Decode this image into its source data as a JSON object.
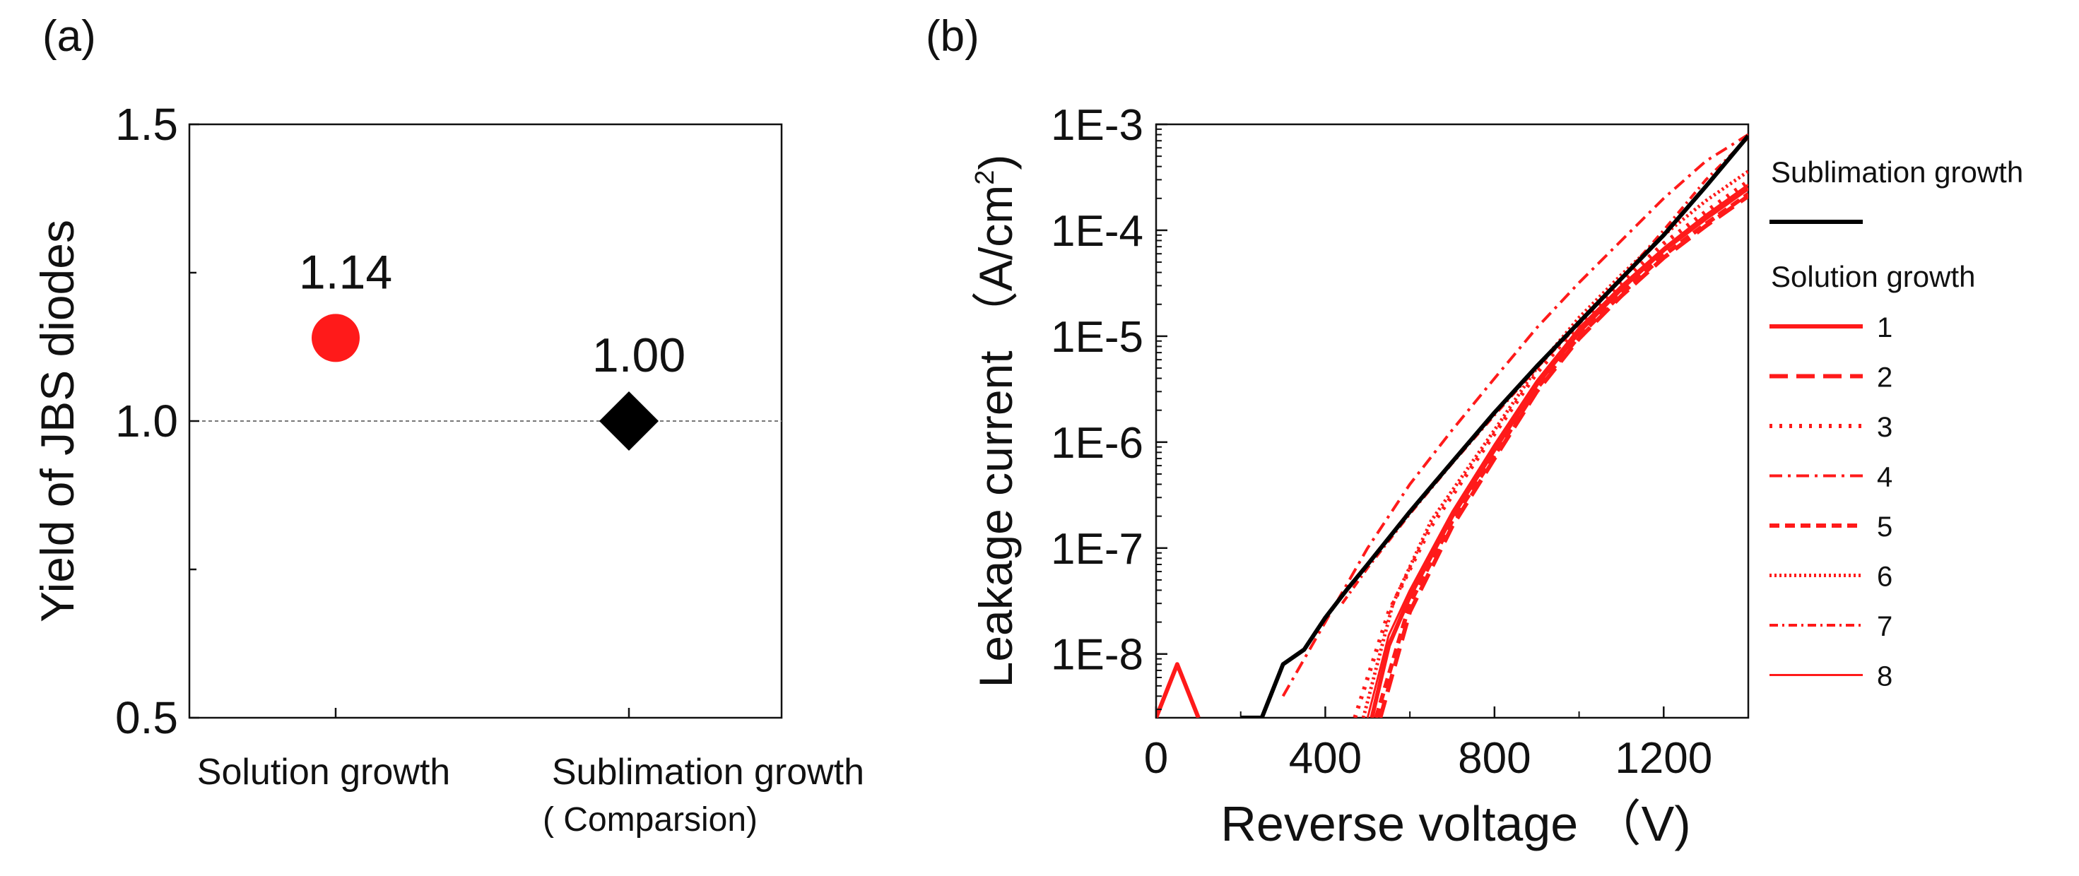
{
  "panels": {
    "a_label": "(a)",
    "b_label": "(b)"
  },
  "chart_data": [
    {
      "type": "scatter",
      "panel": "a",
      "ylabel": "Yield of JBS diodes",
      "xlabel": "",
      "ylim": [
        0.5,
        1.5
      ],
      "yticks": [
        "0.5",
        "1.0",
        "1.5"
      ],
      "y_minor_ticks": [
        0.75,
        1.25
      ],
      "reference_line": {
        "y": 1.0,
        "style": "dotted"
      },
      "categories": [
        {
          "label": "Solution growth",
          "sublabel": "",
          "color": "#ff1a1a"
        },
        {
          "label": "Sublimation growth",
          "sublabel": "( Comparsion)",
          "color": "#111111"
        }
      ],
      "points": [
        {
          "category": 0,
          "value": 1.14,
          "label": "1.14",
          "marker": "circle",
          "color": "#ff1a1a"
        },
        {
          "category": 1,
          "value": 1.0,
          "label": "1.00",
          "marker": "diamond",
          "color": "#000000"
        }
      ],
      "grid": false
    },
    {
      "type": "line",
      "panel": "b",
      "xlabel": "Reverse voltage （V)",
      "ylabel_main": "Leakage current （A/cm",
      "ylabel_sup": "2",
      "ylabel_tail": ")",
      "xlim": [
        0,
        1400
      ],
      "xticks": [
        "0",
        "400",
        "800",
        "1200"
      ],
      "y_scale": "log",
      "ylim": [
        2.5e-09,
        0.001
      ],
      "yticks": [
        "1E-8",
        "1E-7",
        "1E-6",
        "1E-5",
        "1E-4",
        "1E-3"
      ],
      "legend_position": "right",
      "legend_headers": [
        "Sublimation growth",
        "Solution growth"
      ],
      "grid": false,
      "series": [
        {
          "name": "Sublimation growth",
          "group": "sublimation",
          "color": "#000000",
          "dash": "",
          "width": 6,
          "points": [
            [
              200,
              2.5e-09
            ],
            [
              250,
              2.5e-09
            ],
            [
              300,
              8e-09
            ],
            [
              350,
              1.1e-08
            ],
            [
              400,
              2.2e-08
            ],
            [
              450,
              4e-08
            ],
            [
              500,
              7e-08
            ],
            [
              600,
              2.2e-07
            ],
            [
              700,
              6.5e-07
            ],
            [
              800,
              1.9e-06
            ],
            [
              900,
              5.2e-06
            ],
            [
              1000,
              1.35e-05
            ],
            [
              1100,
              3.5e-05
            ],
            [
              1200,
              9e-05
            ],
            [
              1300,
              0.00026
            ],
            [
              1400,
              0.00078
            ]
          ]
        },
        {
          "name": "1",
          "group": "solution",
          "color": "#ff1a1a",
          "dash": "",
          "width": 6,
          "points": [
            [
              0,
              2.5e-09
            ],
            [
              50,
              8e-09
            ],
            [
              100,
              2.5e-09
            ]
          ]
        },
        {
          "name": "1",
          "group": "solution",
          "color": "#ff1a1a",
          "dash": "",
          "width": 6,
          "points": [
            [
              510,
              2.5e-09
            ],
            [
              550,
              1.2e-08
            ],
            [
              600,
              3.5e-08
            ],
            [
              700,
              2e-07
            ],
            [
              800,
              8.5e-07
            ],
            [
              900,
              3.5e-06
            ],
            [
              1000,
              1.1e-05
            ],
            [
              1100,
              2.8e-05
            ],
            [
              1200,
              6.5e-05
            ],
            [
              1300,
              0.00013
            ],
            [
              1400,
              0.00025
            ]
          ]
        },
        {
          "name": "2",
          "group": "solution",
          "color": "#ff1a1a",
          "dash": "26 12",
          "width": 6,
          "points": [
            [
              530,
              2.5e-09
            ],
            [
              600,
              2.5e-08
            ],
            [
              700,
              1.6e-07
            ],
            [
              800,
              7e-07
            ],
            [
              900,
              3e-06
            ],
            [
              1000,
              9.5e-06
            ],
            [
              1100,
              2.4e-05
            ],
            [
              1200,
              5.5e-05
            ],
            [
              1300,
              0.00011
            ],
            [
              1400,
              0.00021
            ]
          ]
        },
        {
          "name": "3",
          "group": "solution",
          "color": "#ff1a1a",
          "dash": "4 10",
          "width": 6,
          "points": [
            [
              470,
              2.5e-09
            ],
            [
              550,
              2.5e-08
            ],
            [
              650,
              1.6e-07
            ],
            [
              800,
              1.2e-06
            ],
            [
              900,
              4.5e-06
            ],
            [
              1000,
              1.3e-05
            ],
            [
              1100,
              3.2e-05
            ],
            [
              1200,
              7.5e-05
            ],
            [
              1300,
              0.00015
            ],
            [
              1400,
              0.00029
            ]
          ]
        },
        {
          "name": "4",
          "group": "solution",
          "color": "#ff1a1a",
          "dash": "18 8 4 8",
          "width": 4,
          "points": [
            [
              300,
              4e-09
            ],
            [
              400,
              2e-08
            ],
            [
              500,
              1e-07
            ],
            [
              600,
              4e-07
            ],
            [
              700,
              1.3e-06
            ],
            [
              800,
              4e-06
            ],
            [
              900,
              1.2e-05
            ],
            [
              1000,
              3.2e-05
            ],
            [
              1100,
              8e-05
            ],
            [
              1200,
              0.0002
            ],
            [
              1300,
              0.00045
            ],
            [
              1400,
              0.0008
            ]
          ]
        },
        {
          "name": "5",
          "group": "solution",
          "color": "#ff1a1a",
          "dash": "14 8",
          "width": 6,
          "points": [
            [
              520,
              2.5e-09
            ],
            [
              600,
              3e-08
            ],
            [
              700,
              1.8e-07
            ],
            [
              800,
              7.5e-07
            ],
            [
              900,
              3.2e-06
            ],
            [
              1000,
              1e-05
            ],
            [
              1100,
              2.5e-05
            ],
            [
              1200,
              5.8e-05
            ],
            [
              1300,
              0.000115
            ],
            [
              1400,
              0.00022
            ]
          ]
        },
        {
          "name": "6",
          "group": "solution",
          "color": "#ff1a1a",
          "dash": "3 4",
          "width": 5,
          "points": [
            [
              490,
              2.5e-09
            ],
            [
              560,
              3e-08
            ],
            [
              650,
              1.8e-07
            ],
            [
              800,
              1.3e-06
            ],
            [
              900,
              5e-06
            ],
            [
              1000,
              1.5e-05
            ],
            [
              1100,
              3.8e-05
            ],
            [
              1200,
              9e-05
            ],
            [
              1300,
              0.00019
            ],
            [
              1400,
              0.00036
            ]
          ]
        },
        {
          "name": "7",
          "group": "solution",
          "color": "#ff1a1a",
          "dash": "12 6 3 6",
          "width": 4,
          "points": [
            [
              440,
              3e-08
            ],
            [
              500,
              6.5e-08
            ],
            [
              600,
              2.1e-07
            ],
            [
              700,
              6.3e-07
            ],
            [
              800,
              1.8e-06
            ],
            [
              900,
              5e-06
            ],
            [
              1000,
              1.3e-05
            ],
            [
              1100,
              3.5e-05
            ],
            [
              1200,
              0.0001
            ],
            [
              1300,
              0.0003
            ],
            [
              1400,
              0.00075
            ]
          ]
        },
        {
          "name": "8",
          "group": "solution",
          "color": "#ff1a1a",
          "dash": "",
          "width": 3,
          "points": [
            [
              500,
              2.5e-09
            ],
            [
              550,
              1.5e-08
            ],
            [
              600,
              4e-08
            ],
            [
              700,
              2.2e-07
            ],
            [
              800,
              9.5e-07
            ],
            [
              900,
              3.8e-06
            ],
            [
              1000,
              1.2e-05
            ],
            [
              1100,
              3e-05
            ],
            [
              1200,
              6.8e-05
            ],
            [
              1300,
              0.00014
            ],
            [
              1400,
              0.00027
            ]
          ]
        }
      ],
      "legend_items": [
        {
          "label": "1",
          "color": "#ff1a1a",
          "dash": "",
          "width": 6
        },
        {
          "label": "2",
          "color": "#ff1a1a",
          "dash": "26 12",
          "width": 6
        },
        {
          "label": "3",
          "color": "#ff1a1a",
          "dash": "4 10",
          "width": 6
        },
        {
          "label": "4",
          "color": "#ff1a1a",
          "dash": "18 8 4 8",
          "width": 4
        },
        {
          "label": "5",
          "color": "#ff1a1a",
          "dash": "14 8",
          "width": 6
        },
        {
          "label": "6",
          "color": "#ff1a1a",
          "dash": "3 4",
          "width": 5
        },
        {
          "label": "7",
          "color": "#ff1a1a",
          "dash": "12 6 3 6",
          "width": 4
        },
        {
          "label": "8",
          "color": "#ff1a1a",
          "dash": "",
          "width": 3
        }
      ]
    }
  ]
}
